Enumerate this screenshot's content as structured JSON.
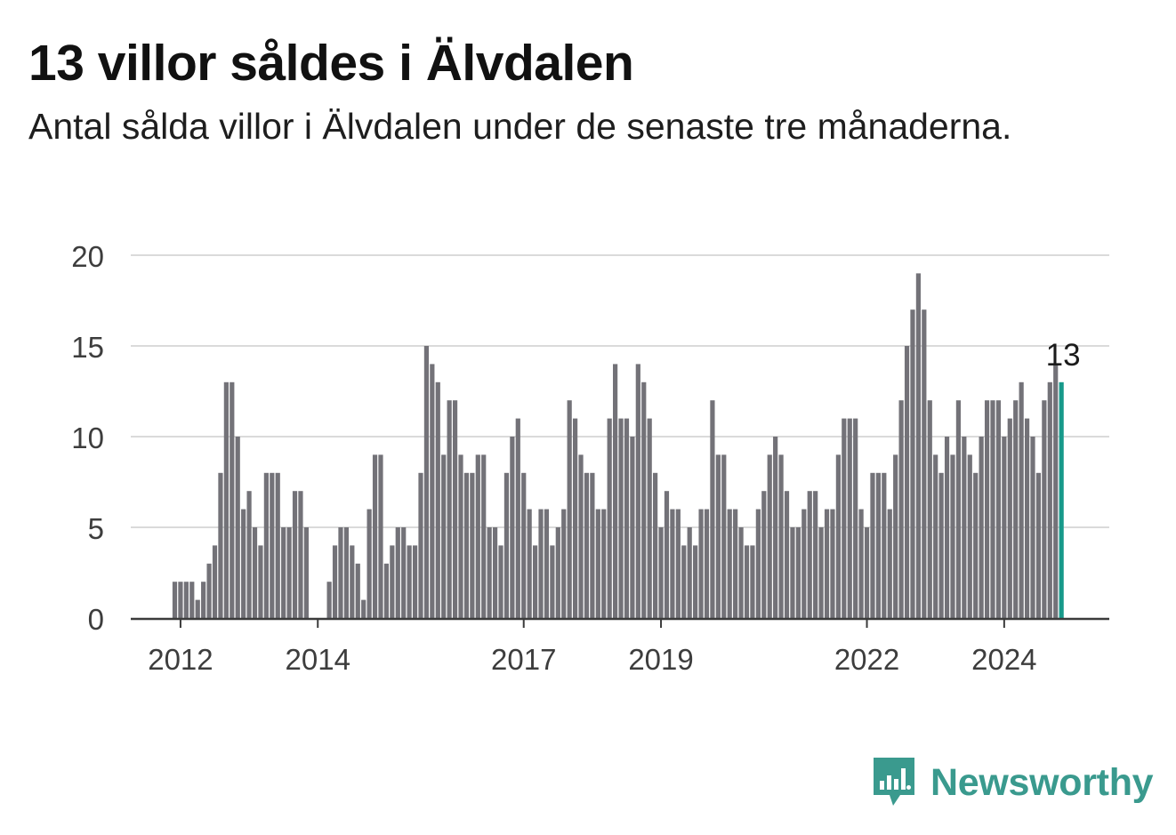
{
  "header": {
    "title": "13 villor såldes i Älvdalen",
    "subtitle": "Antal sålda villor i Älvdalen under de senaste tre månaderna."
  },
  "brand": {
    "name": "Newsworthy",
    "color": "#3a9a8e",
    "icon": "bar-chart-speech-bubble-icon"
  },
  "colors": {
    "bar": "#737278",
    "highlight": "#17998a",
    "grid": "#dadada",
    "axis": "#3b3b3b"
  },
  "chart_data": {
    "type": "bar",
    "title": "13 villor såldes i Älvdalen",
    "subtitle": "Antal sålda villor i Älvdalen under de senaste tre månaderna.",
    "xlabel": "",
    "ylabel": "",
    "ylim": [
      0,
      20
    ],
    "yticks": [
      0,
      5,
      10,
      15,
      20
    ],
    "grid": true,
    "legend": "none",
    "start": "2011-12",
    "frequency": "monthly",
    "xticks": [
      {
        "label": "2012",
        "date": "2012-01"
      },
      {
        "label": "2014",
        "date": "2014-01"
      },
      {
        "label": "2017",
        "date": "2017-01"
      },
      {
        "label": "2019",
        "date": "2019-01"
      },
      {
        "label": "2022",
        "date": "2022-01"
      },
      {
        "label": "2024",
        "date": "2024-01"
      }
    ],
    "values": [
      2,
      2,
      2,
      2,
      1,
      2,
      3,
      4,
      8,
      13,
      13,
      10,
      6,
      7,
      5,
      4,
      8,
      8,
      8,
      5,
      5,
      7,
      7,
      5,
      0,
      0,
      0,
      2,
      4,
      5,
      5,
      4,
      3,
      1,
      6,
      9,
      9,
      3,
      4,
      5,
      5,
      4,
      4,
      8,
      15,
      14,
      13,
      9,
      12,
      12,
      9,
      8,
      8,
      9,
      9,
      5,
      5,
      4,
      8,
      10,
      11,
      8,
      6,
      4,
      6,
      6,
      4,
      5,
      6,
      12,
      11,
      9,
      8,
      8,
      6,
      6,
      11,
      14,
      11,
      11,
      10,
      14,
      13,
      11,
      8,
      5,
      7,
      6,
      6,
      4,
      5,
      4,
      6,
      6,
      12,
      9,
      9,
      6,
      6,
      5,
      4,
      4,
      6,
      7,
      9,
      10,
      9,
      7,
      5,
      5,
      6,
      7,
      7,
      5,
      6,
      6,
      9,
      11,
      11,
      11,
      6,
      5,
      8,
      8,
      8,
      6,
      9,
      12,
      15,
      17,
      19,
      17,
      12,
      9,
      8,
      10,
      9,
      12,
      10,
      9,
      8,
      10,
      12,
      12,
      12,
      10,
      11,
      12,
      13,
      11,
      10,
      8,
      12,
      13,
      14,
      13
    ],
    "highlight_last": true,
    "annotations": [
      {
        "text": "13",
        "target": "last"
      }
    ]
  }
}
